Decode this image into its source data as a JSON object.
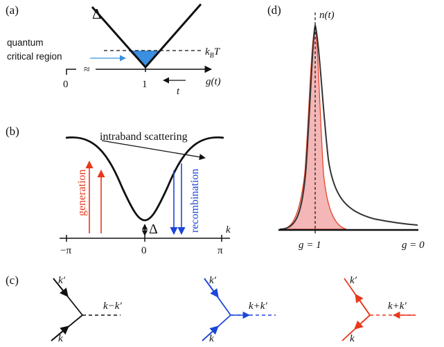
{
  "colors": {
    "black": "#111111",
    "red": "#e8381c",
    "blue": "#1c46d8",
    "cyan": "#3a8fe0",
    "light_red": "#f4b6b6",
    "gray_curve": "#333333"
  },
  "panel_a": {
    "label": "(a)",
    "delta": "Δ",
    "region_label_line1": "quantum",
    "region_label_line2": "critical region",
    "kbt": "k",
    "kbt_sub": "B",
    "kbt_T": "T",
    "axis_zero": "0",
    "axis_one": "1",
    "axis_label": "g(t)",
    "time_label": "t",
    "break_mark": "≈"
  },
  "panel_b": {
    "label": "(b)",
    "scatter_label": "intraband scattering",
    "generation": "generation",
    "recombination": "recombination",
    "delta": "Δ",
    "k_label": "k",
    "ticks": [
      "−π",
      "0",
      "π"
    ]
  },
  "panel_c": {
    "label": "(c)",
    "vertices": [
      {
        "top": "k′",
        "bottom": "k",
        "out": "k−k′"
      },
      {
        "top": "k′",
        "bottom": "k",
        "out": "k+k′"
      },
      {
        "top": "k′",
        "bottom": "k",
        "out": "k+k′"
      }
    ]
  },
  "panel_d": {
    "label": "(d)",
    "n_label": "n(t)",
    "g1_label": "g = 1",
    "g0_label": "g = 0"
  }
}
